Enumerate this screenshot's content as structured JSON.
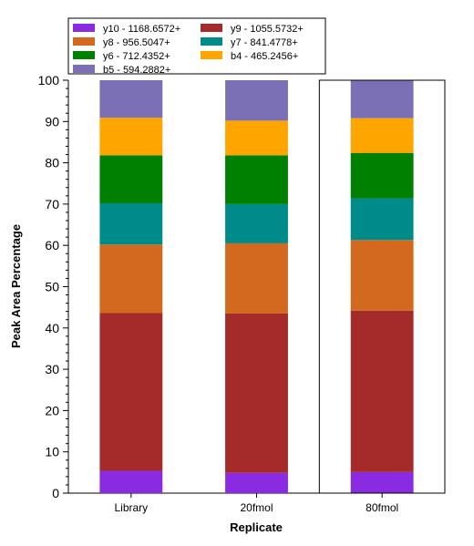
{
  "chart_data": {
    "type": "bar",
    "stacked": true,
    "categories": [
      "Library",
      "20fmol",
      "80fmol"
    ],
    "highlighted_category": "80fmol",
    "xlabel": "Replicate",
    "ylabel": "Peak Area Percentage",
    "ylim": [
      0,
      100
    ],
    "yticks": [
      0,
      10,
      20,
      30,
      40,
      50,
      60,
      70,
      80,
      90,
      100
    ],
    "legend_placement": "top-left",
    "grid": false,
    "series": [
      {
        "name": "y10 - 1168.6572+",
        "color": "#8a2be2",
        "values": [
          5.4,
          4.9,
          5.1
        ]
      },
      {
        "name": "y9 - 1055.5732+",
        "color": "#a52a2a",
        "values": [
          38.2,
          38.6,
          39.1
        ]
      },
      {
        "name": "y8 - 956.5047+",
        "color": "#d2691e",
        "values": [
          16.6,
          17.0,
          17.1
        ]
      },
      {
        "name": "y7 - 841.4778+",
        "color": "#008b8b",
        "values": [
          10.0,
          9.5,
          10.1
        ]
      },
      {
        "name": "y6 - 712.4352+",
        "color": "#008000",
        "values": [
          11.6,
          11.8,
          11.0
        ]
      },
      {
        "name": "b4 - 465.2456+",
        "color": "#ffa500",
        "values": [
          9.1,
          8.4,
          8.4
        ]
      },
      {
        "name": "b5 - 594.2882+",
        "color": "#7b70b6",
        "values": [
          9.1,
          9.8,
          9.2
        ]
      }
    ],
    "legend_order": [
      "y10 - 1168.6572+",
      "y9 - 1055.5732+",
      "y8 - 956.5047+",
      "y7 - 841.4778+",
      "y6 - 712.4352+",
      "b4 - 465.2456+",
      "b5 - 594.2882+"
    ]
  }
}
